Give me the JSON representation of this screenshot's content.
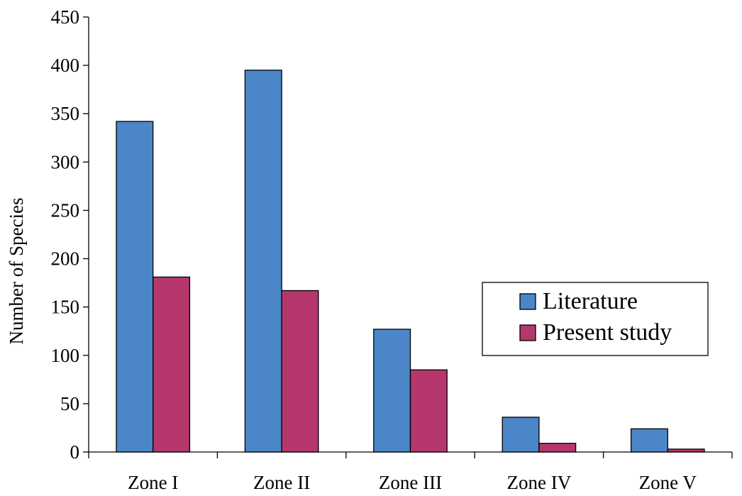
{
  "chart_data": {
    "type": "bar",
    "title": "",
    "xlabel": "",
    "ylabel": "Number of Species",
    "ylim": [
      0,
      450
    ],
    "yticks": [
      0,
      50,
      100,
      150,
      200,
      250,
      300,
      350,
      400,
      450
    ],
    "categories": [
      "Zone I",
      "Zone II",
      "Zone III",
      "Zone IV",
      "Zone V"
    ],
    "series": [
      {
        "name": "Literature",
        "color": "#4a86c8",
        "values": [
          342,
          395,
          127,
          36,
          24
        ]
      },
      {
        "name": "Present study",
        "color": "#b5376e",
        "values": [
          181,
          167,
          85,
          9,
          3
        ]
      }
    ],
    "grid": false,
    "legend": {
      "position": "right"
    }
  }
}
